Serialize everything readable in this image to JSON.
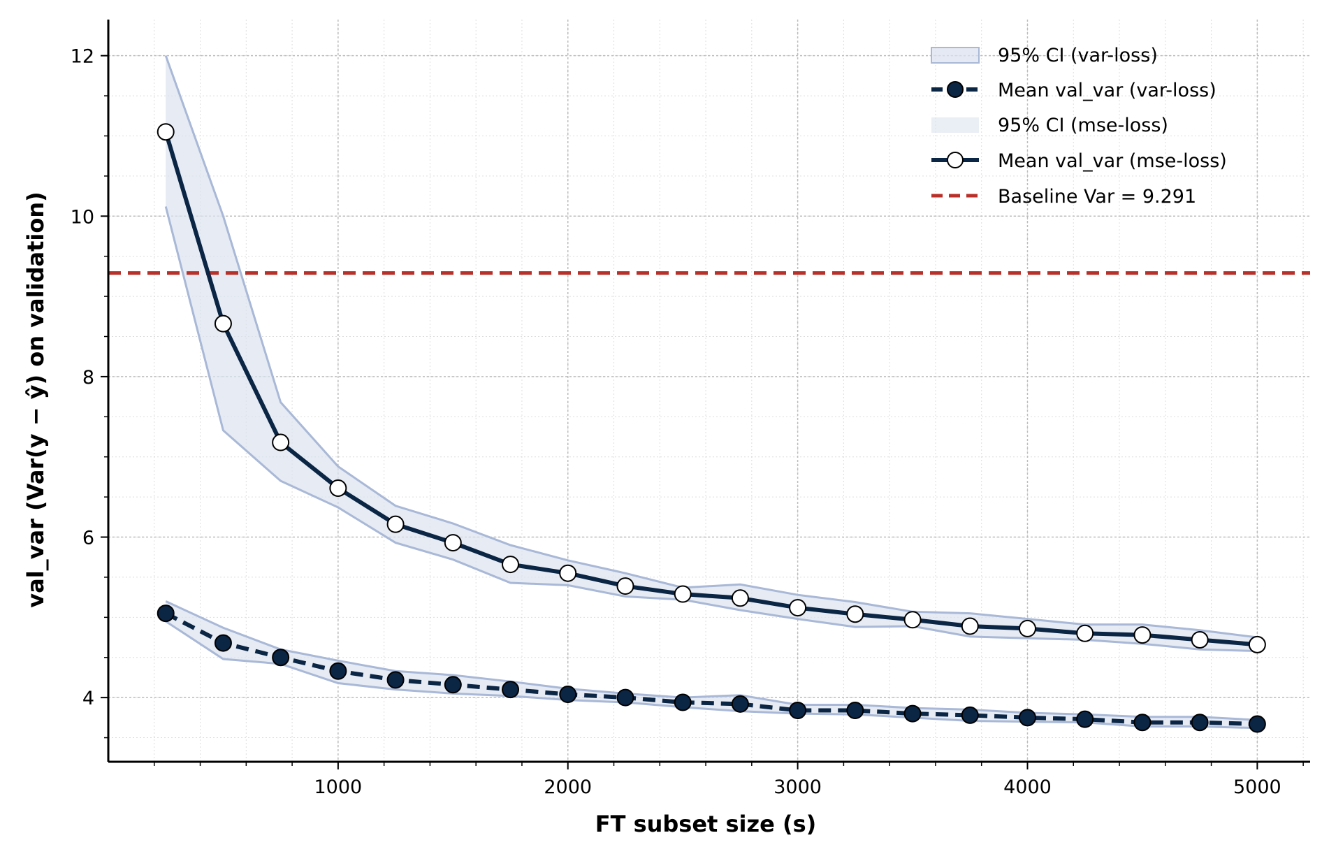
{
  "chart_data": {
    "type": "line",
    "xlabel": "FT subset size (s)",
    "ylabel": "val_var  (Var(y − ŷ) on validation)",
    "xlim": [
      0,
      5230
    ],
    "ylim": [
      3.2,
      12.45
    ],
    "x_ticks": [
      1000,
      2000,
      3000,
      4000,
      5000
    ],
    "y_ticks": [
      4,
      6,
      8,
      10,
      12
    ],
    "grid": true,
    "legend_position": "top-right",
    "x": [
      250,
      500,
      750,
      1000,
      1250,
      1500,
      1750,
      2000,
      2250,
      2500,
      2750,
      3000,
      3250,
      3500,
      3750,
      4000,
      4250,
      4500,
      4750,
      5000
    ],
    "series": [
      {
        "name": "Mean val_var (var-loss)",
        "ci_name": "95% CI (var-loss)",
        "line_style": "dashed",
        "marker": "filled",
        "values": [
          5.05,
          4.68,
          4.5,
          4.33,
          4.22,
          4.16,
          4.1,
          4.04,
          4.0,
          3.94,
          3.92,
          3.84,
          3.84,
          3.8,
          3.78,
          3.75,
          3.73,
          3.69,
          3.69,
          3.67
        ],
        "ci_low": [
          4.95,
          4.48,
          4.42,
          4.18,
          4.1,
          4.05,
          4.02,
          3.97,
          3.94,
          3.88,
          3.83,
          3.8,
          3.79,
          3.75,
          3.71,
          3.7,
          3.69,
          3.64,
          3.64,
          3.62
        ],
        "ci_high": [
          5.2,
          4.87,
          4.6,
          4.46,
          4.33,
          4.28,
          4.2,
          4.11,
          4.05,
          4.0,
          4.03,
          3.91,
          3.91,
          3.87,
          3.85,
          3.81,
          3.79,
          3.76,
          3.76,
          3.72
        ]
      },
      {
        "name": "Mean val_var (mse-loss)",
        "ci_name": "95% CI (mse-loss)",
        "line_style": "solid",
        "marker": "open",
        "values": [
          11.05,
          8.66,
          7.18,
          6.61,
          6.16,
          5.93,
          5.66,
          5.55,
          5.39,
          5.29,
          5.24,
          5.12,
          5.04,
          4.97,
          4.89,
          4.86,
          4.8,
          4.78,
          4.72,
          4.66
        ],
        "ci_low": [
          10.12,
          7.33,
          6.7,
          6.37,
          5.93,
          5.72,
          5.43,
          5.4,
          5.26,
          5.22,
          5.09,
          4.98,
          4.88,
          4.89,
          4.76,
          4.74,
          4.72,
          4.67,
          4.6,
          4.58
        ],
        "ci_high": [
          12.0,
          10.0,
          7.68,
          6.88,
          6.39,
          6.17,
          5.9,
          5.71,
          5.55,
          5.37,
          5.41,
          5.28,
          5.19,
          5.07,
          5.05,
          4.98,
          4.91,
          4.91,
          4.84,
          4.75
        ]
      }
    ],
    "baseline": {
      "label": "Baseline Var = 9.291",
      "value": 9.291
    },
    "colors": {
      "line": "#0b2545",
      "ci_band": "#dce2ef",
      "ci_edge": "#a8b8d6",
      "baseline": "#b8302a",
      "grid": "#c8c8c8"
    }
  },
  "legend": {
    "ci_var": "95% CI (var-loss)",
    "mean_var": "Mean val_var (var-loss)",
    "ci_mse": "95% CI (mse-loss)",
    "mean_mse": "Mean val_var (mse-loss)",
    "baseline": "Baseline Var = 9.291"
  }
}
